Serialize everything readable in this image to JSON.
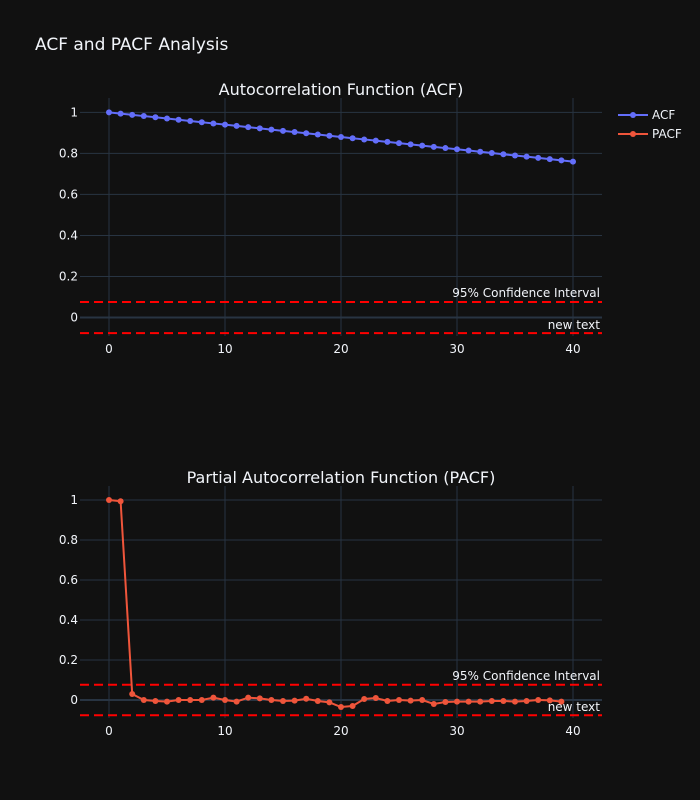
{
  "page_title": "ACF and PACF Analysis",
  "colors": {
    "background": "#111111",
    "grid": "#283442",
    "zeroline": "#283442",
    "text": "#f2f5fa",
    "acf": "#636efa",
    "pacf": "#ef553b",
    "confidence": "#ff0000"
  },
  "legend": {
    "placement": "top-right",
    "items": [
      {
        "label": "ACF",
        "color_key": "acf"
      },
      {
        "label": "PACF",
        "color_key": "pacf"
      }
    ]
  },
  "chart_data": [
    {
      "type": "line",
      "title": "Autocorrelation Function (ACF)",
      "series": [
        {
          "name": "ACF",
          "x": [
            0,
            1,
            2,
            3,
            4,
            5,
            6,
            7,
            8,
            9,
            10,
            11,
            12,
            13,
            14,
            15,
            16,
            17,
            18,
            19,
            20,
            21,
            22,
            23,
            24,
            25,
            26,
            27,
            28,
            29,
            30,
            31,
            32,
            33,
            34,
            35,
            36,
            37,
            38,
            39,
            40
          ],
          "values": [
            1.0,
            0.994,
            0.988,
            0.982,
            0.976,
            0.97,
            0.964,
            0.958,
            0.952,
            0.946,
            0.94,
            0.934,
            0.928,
            0.922,
            0.916,
            0.91,
            0.904,
            0.898,
            0.892,
            0.886,
            0.88,
            0.874,
            0.868,
            0.862,
            0.856,
            0.85,
            0.844,
            0.838,
            0.832,
            0.826,
            0.82,
            0.814,
            0.808,
            0.802,
            0.796,
            0.79,
            0.784,
            0.778,
            0.772,
            0.766,
            0.76
          ]
        }
      ],
      "confidence_interval": {
        "upper": 0.076,
        "lower": -0.076
      },
      "annotations": [
        "95% Confidence Interval",
        "new text"
      ],
      "x_ticks": [
        0,
        10,
        20,
        30,
        40
      ],
      "y_ticks": [
        0,
        0.2,
        0.4,
        0.6,
        0.8,
        1
      ],
      "y_tick_labels": [
        "0",
        "0.2",
        "0.4",
        "0.6",
        "0.8",
        "1"
      ],
      "xlim": [
        -2.5,
        42.5
      ],
      "ylim": [
        -0.09,
        1.07
      ],
      "grid": true
    },
    {
      "type": "line",
      "title": "Partial Autocorrelation Function (PACF)",
      "series": [
        {
          "name": "PACF",
          "x": [
            0,
            1,
            2,
            3,
            4,
            5,
            6,
            7,
            8,
            9,
            10,
            11,
            12,
            13,
            14,
            15,
            16,
            17,
            18,
            19,
            20,
            21,
            22,
            23,
            24,
            25,
            26,
            27,
            28,
            29,
            30,
            31,
            32,
            33,
            34,
            35,
            36,
            37,
            38,
            39
          ],
          "values": [
            1.0,
            0.994,
            0.03,
            0.0,
            -0.005,
            -0.008,
            0.0,
            0.0,
            0.0,
            0.012,
            0.0,
            -0.008,
            0.012,
            0.008,
            0.0,
            -0.005,
            -0.003,
            0.006,
            -0.005,
            -0.012,
            -0.035,
            -0.03,
            0.005,
            0.01,
            -0.005,
            0.0,
            -0.003,
            0.0,
            -0.02,
            -0.01,
            -0.008,
            -0.008,
            -0.008,
            -0.005,
            -0.005,
            -0.008,
            -0.005,
            0.0,
            -0.002,
            -0.008
          ]
        }
      ],
      "confidence_interval": {
        "upper": 0.076,
        "lower": -0.076
      },
      "annotations": [
        "95% Confidence Interval",
        "new text"
      ],
      "x_ticks": [
        0,
        10,
        20,
        30,
        40
      ],
      "y_ticks": [
        0,
        0.2,
        0.4,
        0.6,
        0.8,
        1
      ],
      "y_tick_labels": [
        "0",
        "0.2",
        "0.4",
        "0.6",
        "0.8",
        "1"
      ],
      "xlim": [
        -2.5,
        42.5
      ],
      "ylim": [
        -0.09,
        1.07
      ],
      "grid": true
    }
  ]
}
